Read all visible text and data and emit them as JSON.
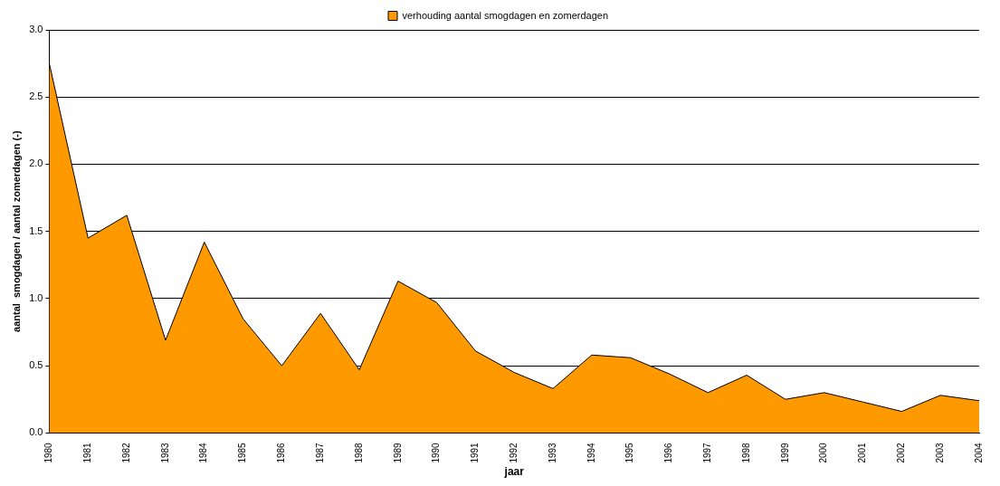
{
  "chart_data": {
    "type": "area",
    "xlabel": "jaar",
    "ylabel": "aantal  smogdagen / aantal zomerdagen (-)",
    "categories": [
      "1980",
      "1981",
      "1982",
      "1983",
      "1984",
      "1985",
      "1986",
      "1987",
      "1988",
      "1989",
      "1990",
      "1991",
      "1992",
      "1993",
      "1994",
      "1995",
      "1996",
      "1997",
      "1998",
      "1999",
      "2000",
      "2001",
      "2002",
      "2003",
      "2004"
    ],
    "series": [
      {
        "name": "verhouding aantal smogdagen en zomerdagen",
        "color": "#ff9900",
        "values": [
          2.75,
          1.45,
          1.62,
          0.69,
          1.42,
          0.85,
          0.5,
          0.89,
          0.47,
          1.13,
          0.97,
          0.61,
          0.45,
          0.33,
          0.58,
          0.56,
          0.44,
          0.3,
          0.43,
          0.25,
          0.3,
          0.23,
          0.16,
          0.28,
          0.24
        ]
      }
    ],
    "ylim": [
      0,
      3
    ],
    "yticks": [
      {
        "value": 0,
        "label": "0.0"
      },
      {
        "value": 0.5,
        "label": "0.5"
      },
      {
        "value": 1,
        "label": "1.0"
      },
      {
        "value": 1.5,
        "label": "1.5"
      },
      {
        "value": 2,
        "label": "2.0"
      },
      {
        "value": 2.5,
        "label": "2.5"
      },
      {
        "value": 3,
        "label": "3.0"
      }
    ],
    "grid": "y",
    "legend": "top"
  }
}
